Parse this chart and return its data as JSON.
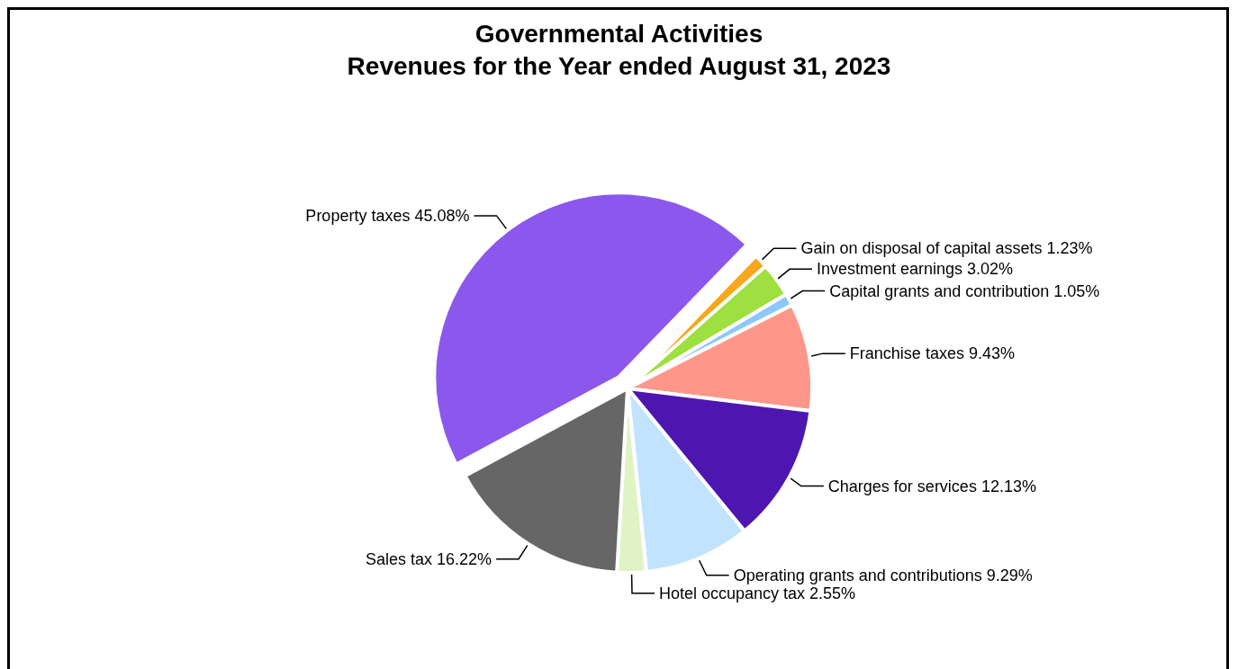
{
  "chart_data": {
    "type": "pie",
    "title": "Governmental Activities",
    "subtitle": "Revenues for the Year ended August 31, 2023",
    "categories": [
      "Gain on disposal of capital assets",
      "Investment earnings",
      "Capital grants and contribution",
      "Franchise taxes",
      "Charges for services",
      "Operating grants and contributions",
      "Hotel occupancy tax",
      "Sales tax",
      "Property taxes"
    ],
    "values": [
      1.23,
      3.02,
      1.05,
      9.43,
      12.13,
      9.29,
      2.55,
      16.22,
      45.08
    ],
    "colors": [
      "#f6a71b",
      "#9ee03f",
      "#8cc8ff",
      "#ff968a",
      "#4e16b0",
      "#c2e3ff",
      "#e0f3c4",
      "#666666",
      "#8b57ec"
    ],
    "value_labels": [
      "1.23%",
      "3.02%",
      "1.05%",
      "9.43%",
      "12.13%",
      "9.29%",
      "2.55%",
      "16.22%",
      "45.08%"
    ],
    "legend": false
  }
}
